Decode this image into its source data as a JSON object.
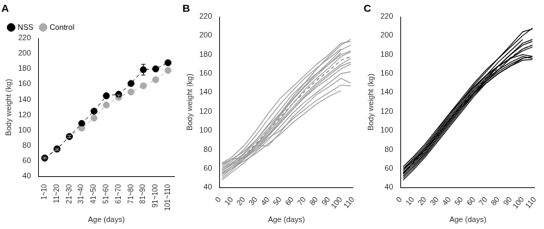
{
  "chart_data": [
    {
      "type": "line",
      "title": "A",
      "categories": [
        "1~10",
        "11~20",
        "21~30",
        "31~40",
        "41~50",
        "51~60",
        "61~70",
        "71~80",
        "81~90",
        "91~100",
        "101~110"
      ],
      "series": [
        {
          "name": "NSS",
          "color": "#000000",
          "marker": "circle",
          "line_style": "dashed",
          "values": [
            64,
            76,
            92,
            109,
            125,
            145,
            147,
            161,
            179,
            180,
            188
          ],
          "errors": [
            1,
            1,
            1.5,
            2,
            2,
            3,
            2.5,
            2.5,
            7,
            3,
            2.5
          ]
        },
        {
          "name": "Control",
          "color": "#aaaaaa",
          "marker": "circle",
          "line_style": "dashed",
          "values": [
            64,
            75,
            92,
            103,
            116,
            133,
            143,
            150,
            158,
            166,
            178
          ],
          "errors": [
            1,
            1,
            1.5,
            2,
            1.5,
            2,
            3,
            3,
            3,
            3,
            1
          ]
        }
      ],
      "x_label": "Age (days)",
      "y_label": "Body weight (kg)",
      "ylim": [
        40,
        220
      ],
      "yticks": [
        40,
        60,
        80,
        100,
        120,
        140,
        160,
        180,
        200,
        220
      ],
      "legend": "top-left",
      "grid": false
    },
    {
      "type": "line",
      "title": "B",
      "x": [
        2,
        10,
        20,
        30,
        40,
        50,
        60,
        70,
        80,
        90,
        100,
        108
      ],
      "series": [
        {
          "color": "#999999",
          "line_style": "solid",
          "values": [
            65,
            70,
            78,
            90,
            105,
            118,
            135,
            150,
            165,
            178,
            190,
            196
          ]
        },
        {
          "color": "#999999",
          "line_style": "solid",
          "values": [
            60,
            66,
            75,
            88,
            102,
            117,
            133,
            147,
            160,
            172,
            185,
            190
          ]
        },
        {
          "color": "#999999",
          "line_style": "solid",
          "values": [
            55,
            62,
            72,
            85,
            98,
            112,
            128,
            143,
            155,
            166,
            178,
            183
          ]
        },
        {
          "color": "#999999",
          "line_style": "solid",
          "values": [
            50,
            58,
            70,
            84,
            100,
            116,
            132,
            146,
            158,
            170,
            182,
            null
          ]
        },
        {
          "color": "#999999",
          "line_style": "solid",
          "values": [
            58,
            64,
            73,
            84,
            96,
            110,
            124,
            138,
            150,
            160,
            170,
            176
          ]
        },
        {
          "color": "#999999",
          "line_style": "solid",
          "values": [
            62,
            70,
            71,
            80,
            94,
            108,
            122,
            136,
            148,
            158,
            168,
            172
          ]
        },
        {
          "color": "#999999",
          "line_style": "solid",
          "values": [
            52,
            60,
            70,
            82,
            95,
            108,
            122,
            135,
            146,
            155,
            165,
            170
          ]
        },
        {
          "color": "#999999",
          "line_style": "solid",
          "values": [
            48,
            56,
            66,
            78,
            90,
            104,
            118,
            130,
            140,
            150,
            160,
            162
          ]
        },
        {
          "color": "#999999",
          "line_style": "solid",
          "values": [
            64,
            70,
            72,
            84,
            84,
            98,
            114,
            126,
            138,
            146,
            155,
            150
          ]
        },
        {
          "color": "#999999",
          "line_style": "solid",
          "values": [
            56,
            62,
            70,
            80,
            92,
            100,
            112,
            122,
            132,
            140,
            148,
            147
          ]
        },
        {
          "color": "#999999",
          "line_style": "solid",
          "values": [
            54,
            60,
            68,
            76,
            86,
            96,
            108,
            118,
            128,
            136,
            142,
            null
          ]
        },
        {
          "color": "#999999",
          "line_style": "solid",
          "values": [
            66,
            72,
            84,
            100,
            118,
            134,
            146,
            158,
            170,
            180,
            192,
            194
          ]
        },
        {
          "color": "#999999",
          "line_style": "solid",
          "values": [
            60,
            68,
            80,
            95,
            112,
            128,
            142,
            155,
            166,
            176,
            186,
            null
          ]
        },
        {
          "color": "#999999",
          "line_style": "solid",
          "values": [
            58,
            65,
            76,
            90,
            106,
            122,
            138,
            150,
            160,
            170,
            180,
            184
          ]
        },
        {
          "color": "#777777",
          "line_style": "dashed",
          "values": [
            58,
            64,
            73,
            86,
            100,
            114,
            128,
            141,
            153,
            163,
            174,
            178
          ]
        }
      ],
      "x_label": "Age (days)",
      "y_label": "Body weight (kg)",
      "xlim": [
        0,
        110
      ],
      "xticks": [
        0,
        10,
        20,
        30,
        40,
        50,
        60,
        70,
        80,
        90,
        100,
        110
      ],
      "ylim": [
        40,
        220
      ],
      "yticks": [
        40,
        60,
        80,
        100,
        120,
        140,
        160,
        180,
        200,
        220
      ],
      "grid": false
    },
    {
      "type": "line",
      "title": "C",
      "x": [
        2,
        10,
        20,
        30,
        40,
        50,
        60,
        70,
        80,
        90,
        100,
        108
      ],
      "series": [
        {
          "color": "#000000",
          "line_style": "solid",
          "values": [
            60,
            70,
            84,
            100,
            118,
            134,
            150,
            164,
            176,
            190,
            204,
            207
          ]
        },
        {
          "color": "#000000",
          "line_style": "solid",
          "values": [
            55,
            66,
            80,
            96,
            112,
            128,
            144,
            158,
            172,
            184,
            196,
            null
          ]
        },
        {
          "color": "#000000",
          "line_style": "solid",
          "values": [
            52,
            62,
            76,
            92,
            108,
            124,
            140,
            154,
            168,
            180,
            190,
            194
          ]
        },
        {
          "color": "#000000",
          "line_style": "solid",
          "values": [
            50,
            60,
            74,
            90,
            106,
            122,
            138,
            152,
            164,
            176,
            186,
            190
          ]
        },
        {
          "color": "#000000",
          "line_style": "solid",
          "values": [
            58,
            68,
            82,
            98,
            114,
            130,
            146,
            158,
            168,
            176,
            184,
            188
          ]
        },
        {
          "color": "#000000",
          "line_style": "solid",
          "values": [
            62,
            72,
            86,
            102,
            118,
            132,
            146,
            158,
            168,
            176,
            180,
            178
          ]
        },
        {
          "color": "#000000",
          "line_style": "solid",
          "values": [
            48,
            58,
            72,
            88,
            104,
            120,
            136,
            150,
            160,
            168,
            174,
            175
          ]
        },
        {
          "color": "#000000",
          "line_style": "solid",
          "values": [
            54,
            64,
            78,
            94,
            110,
            126,
            140,
            154,
            164,
            172,
            178,
            176
          ]
        },
        {
          "color": "#000000",
          "line_style": "solid",
          "values": [
            56,
            66,
            80,
            96,
            112,
            128,
            142,
            156,
            168,
            180,
            192,
            196
          ]
        },
        {
          "color": "#000000",
          "line_style": "solid",
          "values": [
            60,
            68,
            80,
            94,
            110,
            126,
            140,
            152,
            162,
            170,
            176,
            178
          ]
        },
        {
          "color": "#000000",
          "line_style": "solid",
          "values": [
            52,
            62,
            76,
            92,
            108,
            124,
            138,
            150,
            160,
            168,
            176,
            null
          ]
        },
        {
          "color": "#000000",
          "line_style": "solid",
          "values": [
            58,
            68,
            82,
            98,
            116,
            132,
            148,
            162,
            176,
            188,
            200,
            208
          ]
        },
        {
          "color": "#555555",
          "line_style": "dashed",
          "values": [
            55,
            65,
            79,
            95,
            111,
            127,
            142,
            155,
            166,
            177,
            186,
            190
          ]
        }
      ],
      "x_label": "Age (days)",
      "y_label": "Body weight (kg)",
      "xlim": [
        0,
        110
      ],
      "xticks": [
        0,
        10,
        20,
        30,
        40,
        50,
        60,
        70,
        80,
        90,
        100,
        110
      ],
      "ylim": [
        40,
        220
      ],
      "yticks": [
        40,
        60,
        80,
        100,
        120,
        140,
        160,
        180,
        200,
        220
      ],
      "grid": false
    }
  ]
}
